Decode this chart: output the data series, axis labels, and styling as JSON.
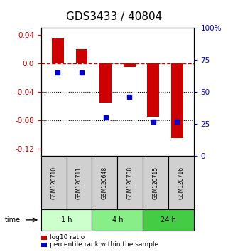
{
  "title": "GDS3433 / 40804",
  "samples": [
    "GSM120710",
    "GSM120711",
    "GSM120648",
    "GSM120708",
    "GSM120715",
    "GSM120716"
  ],
  "log10_ratio": [
    0.035,
    0.02,
    -0.055,
    -0.005,
    -0.075,
    -0.105
  ],
  "percentile_rank": [
    65,
    65,
    30,
    46,
    27,
    27
  ],
  "bar_color": "#cc0000",
  "dot_color": "#0000cc",
  "ylim_left": [
    -0.13,
    0.05
  ],
  "ylim_right": [
    0,
    100
  ],
  "yticks_left": [
    -0.12,
    -0.08,
    -0.04,
    0.0,
    0.04
  ],
  "yticks_right": [
    0,
    25,
    50,
    75,
    100
  ],
  "groups": [
    {
      "label": "1 h",
      "samples": [
        0,
        1
      ],
      "color": "#ccffcc"
    },
    {
      "label": "4 h",
      "samples": [
        2,
        3
      ],
      "color": "#88ee88"
    },
    {
      "label": "24 h",
      "samples": [
        4,
        5
      ],
      "color": "#44cc44"
    }
  ],
  "time_label": "time",
  "legend_items": [
    {
      "color": "#cc0000",
      "label": "log10 ratio"
    },
    {
      "color": "#0000cc",
      "label": "percentile rank within the sample"
    }
  ],
  "bar_width": 0.5,
  "title_fontsize": 11,
  "tick_fontsize": 7.5,
  "sample_box_color": "#d0d0d0"
}
